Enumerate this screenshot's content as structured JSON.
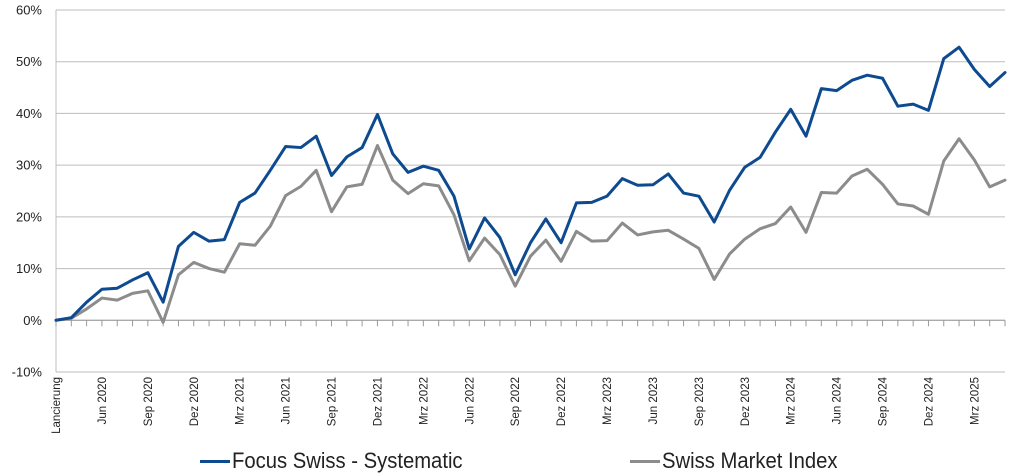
{
  "chart_data": {
    "type": "line",
    "title": "",
    "xlabel": "",
    "ylabel": "",
    "ylim": [
      -10,
      60
    ],
    "yticks": [
      -10,
      0,
      10,
      20,
      30,
      40,
      50,
      60
    ],
    "ytick_labels": [
      "-10%",
      "0%",
      "10%",
      "20%",
      "30%",
      "40%",
      "50%",
      "60%"
    ],
    "grid": "horizontal",
    "legend_position": "bottom",
    "n_points": 63,
    "x_labels": [
      {
        "index": 0,
        "label": "Lancierung"
      },
      {
        "index": 3,
        "label": "Jun 2020"
      },
      {
        "index": 6,
        "label": "Sep 2020"
      },
      {
        "index": 9,
        "label": "Dez 2020"
      },
      {
        "index": 12,
        "label": "Mrz 2021"
      },
      {
        "index": 15,
        "label": "Jun 2021"
      },
      {
        "index": 18,
        "label": "Sep 2021"
      },
      {
        "index": 21,
        "label": "Dez 2021"
      },
      {
        "index": 24,
        "label": "Mrz 2022"
      },
      {
        "index": 27,
        "label": "Jun 2022"
      },
      {
        "index": 30,
        "label": "Sep 2022"
      },
      {
        "index": 33,
        "label": "Dez 2022"
      },
      {
        "index": 36,
        "label": "Mrz 2023"
      },
      {
        "index": 39,
        "label": "Jun 2023"
      },
      {
        "index": 42,
        "label": "Sep 2023"
      },
      {
        "index": 45,
        "label": "Dez 2023"
      },
      {
        "index": 48,
        "label": "Mrz 2024"
      },
      {
        "index": 51,
        "label": "Jun 2024"
      },
      {
        "index": 54,
        "label": "Sep 2024"
      },
      {
        "index": 57,
        "label": "Dez 2024"
      },
      {
        "index": 60,
        "label": "Mrz 2025"
      }
    ],
    "series": [
      {
        "name": "Focus Swiss - Systematic",
        "color": "#0d4a8f",
        "values": [
          0,
          0.5,
          3.5,
          6,
          6.2,
          7.8,
          9.2,
          3.5,
          14.3,
          17,
          15.3,
          15.6,
          22.8,
          24.6,
          29,
          33.6,
          33.4,
          35.6,
          28,
          31.6,
          33.4,
          39.8,
          32.2,
          28.6,
          29.8,
          29,
          24,
          13.8,
          19.8,
          16,
          8.8,
          15,
          19.6,
          15,
          22.7,
          22.8,
          24,
          27.4,
          26.1,
          26.2,
          28.3,
          24.6,
          24,
          19,
          25.1,
          29.6,
          31.5,
          36.4,
          40.8,
          35.6,
          44.8,
          44.4,
          46.4,
          47.4,
          46.8,
          41.4,
          41.8,
          40.6,
          50.6,
          52.8,
          48.5,
          45.2,
          47.9
        ]
      },
      {
        "name": "Swiss Market Index",
        "color": "#8c8c8c",
        "values": [
          0,
          0.4,
          2.2,
          4.3,
          3.9,
          5.2,
          5.7,
          -0.4,
          8.8,
          11.2,
          10,
          9.3,
          14.8,
          14.5,
          18.2,
          24.1,
          25.9,
          29,
          21,
          25.8,
          26.3,
          33.8,
          27.1,
          24.5,
          26.4,
          26,
          20.4,
          11.5,
          15.9,
          12.7,
          6.6,
          12.4,
          15.5,
          11.4,
          17.2,
          15.3,
          15.4,
          18.8,
          16.5,
          17.1,
          17.4,
          15.7,
          13.9,
          7.9,
          12.8,
          15.7,
          17.7,
          18.7,
          21.9,
          17,
          24.7,
          24.6,
          27.9,
          29.2,
          26.3,
          22.5,
          22.1,
          20.5,
          30.8,
          35.1,
          31,
          25.8,
          27.1
        ]
      }
    ]
  }
}
